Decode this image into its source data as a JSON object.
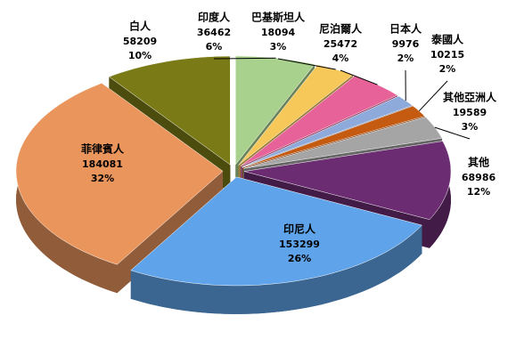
{
  "chart_data": {
    "type": "pie3d",
    "categories": [
      "白人",
      "印度人",
      "巴基斯坦人",
      "尼泊爾人",
      "日本人",
      "泰國人",
      "其他亞洲人",
      "其他",
      "印尼人",
      "菲律賓人"
    ],
    "values": [
      58209,
      36462,
      18094,
      25472,
      9976,
      10215,
      19589,
      68986,
      153299,
      184081
    ],
    "percent_labels": [
      "10%",
      "6%",
      "3%",
      "4%",
      "2%",
      "2%",
      "3%",
      "12%",
      "26%",
      "32%"
    ],
    "colors": [
      "#7a7a16",
      "#a9d18e",
      "#f6c85a",
      "#e8629a",
      "#8eaadb",
      "#c55a11",
      "#a5a5a5",
      "#6b2c72",
      "#5fa4ea",
      "#ea955c"
    ]
  }
}
